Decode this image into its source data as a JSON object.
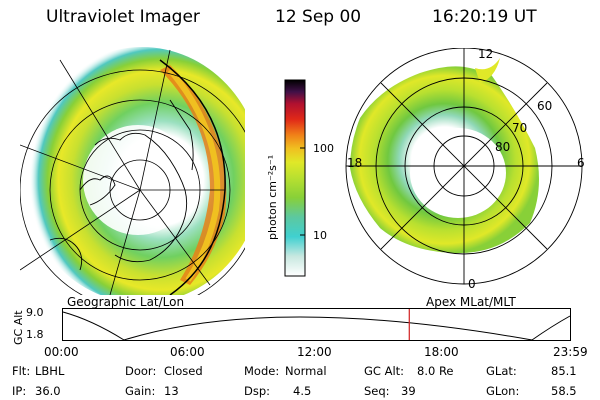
{
  "header": {
    "instrument": "Ultraviolet Imager",
    "date": "12 Sep 00",
    "time": "16:20:19 UT"
  },
  "left_panel": {
    "caption": "Geographic Lat/Lon"
  },
  "right_panel": {
    "caption": "Apex MLat/MLT",
    "mlt_labels": {
      "top": "12",
      "bottom": "0",
      "left": "18",
      "right": "6"
    },
    "lat_labels": [
      "60",
      "70",
      "80"
    ]
  },
  "colorbar": {
    "label": "photon cm⁻²s⁻¹",
    "ticks": [
      "100",
      "10"
    ]
  },
  "altitude_plot": {
    "ylabel": "GC Alt",
    "ytick_top": "9.0",
    "ytick_bottom": "1.8",
    "xticks": [
      "00:00",
      "06:00",
      "12:00",
      "18:00",
      "23:59"
    ],
    "current_time_fraction": 0.683
  },
  "footer": {
    "filter_label": "Flt:",
    "filter_value": "LBHL",
    "door_label": "Door:",
    "door_value": "Closed",
    "mode_label": "Mode:",
    "mode_value": "Normal",
    "gcalt_label": "GC Alt:",
    "gcalt_value": "8.0 Re",
    "glat_label": "GLat:",
    "glat_value": "85.1",
    "ip_label": "IP:",
    "ip_value": "36.0",
    "gain_label": "Gain:",
    "gain_value": "13",
    "dsp_label": "Dsp:",
    "dsp_value": "4.5",
    "seq_label": "Seq:",
    "seq_value": "39",
    "glon_label": "GLon:",
    "glon_value": "58.5"
  },
  "colors": {
    "colormap": [
      "#ffffff",
      "#c8e8e0",
      "#40d0d0",
      "#5cc8a0",
      "#88d038",
      "#b8e030",
      "#e0e828",
      "#f0c020",
      "#f08018",
      "#e02818",
      "#b01030",
      "#401048",
      "#000000"
    ],
    "time_marker": "#d02020"
  }
}
